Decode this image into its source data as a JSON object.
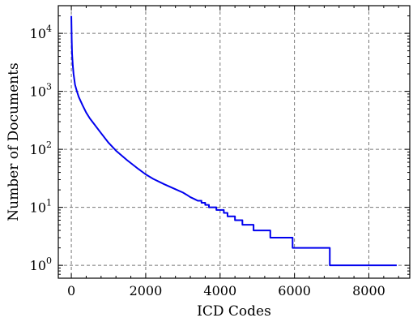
{
  "chart_data": {
    "type": "line",
    "title": "",
    "xlabel": "ICD Codes",
    "ylabel": "Number of Documents",
    "xlim": [
      -350,
      9100
    ],
    "ylim": [
      0.6,
      30000
    ],
    "xscale": "linear",
    "yscale": "log",
    "grid": true,
    "x_ticks": [
      0,
      2000,
      4000,
      6000,
      8000
    ],
    "x_tick_labels": [
      "0",
      "2000",
      "4000",
      "6000",
      "8000"
    ],
    "y_ticks": [
      1,
      10,
      100,
      1000,
      10000
    ],
    "y_tick_labels": [
      {
        "base": "10",
        "exp": "0"
      },
      {
        "base": "10",
        "exp": "1"
      },
      {
        "base": "10",
        "exp": "2"
      },
      {
        "base": "10",
        "exp": "3"
      },
      {
        "base": "10",
        "exp": "4"
      }
    ],
    "series": [
      {
        "color": "#0000ee",
        "x": [
          0,
          10,
          20,
          40,
          60,
          100,
          150,
          200,
          300,
          400,
          500,
          600,
          800,
          1000,
          1200,
          1500,
          1800,
          2000,
          2200,
          2500,
          2800,
          3000,
          3100,
          3200,
          3300,
          3400,
          3500,
          3600,
          3700,
          3800,
          3900,
          4000,
          4100,
          4200,
          4300,
          4400,
          4500,
          4600,
          4800,
          4900,
          5300,
          5350,
          5900,
          5950,
          6900,
          6950,
          8750
        ],
        "y": [
          20000,
          8000,
          4500,
          2800,
          2000,
          1300,
          1000,
          800,
          580,
          430,
          340,
          280,
          190,
          130,
          95,
          65,
          46,
          37,
          31,
          25,
          20.5,
          18,
          16.5,
          15,
          14,
          13,
          12,
          11,
          10,
          10,
          9,
          9,
          8,
          7,
          7,
          6,
          6,
          5,
          5,
          4,
          4,
          3,
          3,
          2,
          2,
          1,
          1
        ],
        "step_after": 3400
      }
    ]
  }
}
